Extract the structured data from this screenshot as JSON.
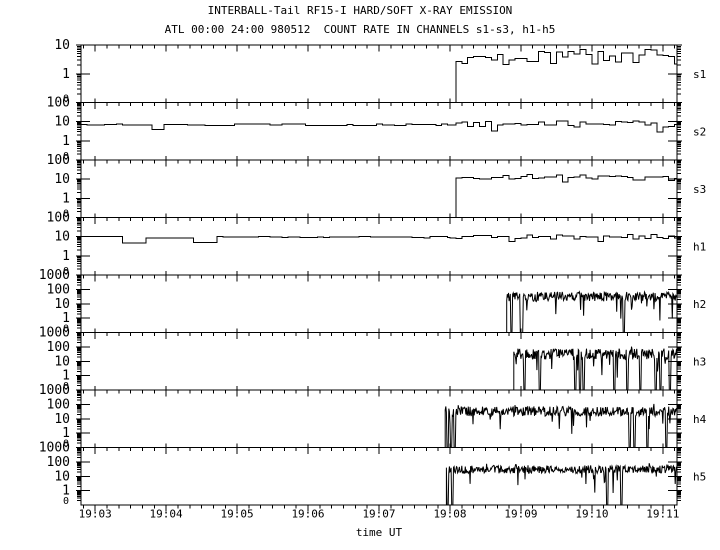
{
  "title": "INTERBALL-Tail RF15-I HARD/SOFT X-RAY EMISSION",
  "subtitle": "ATL 00:00 24:00 980512  COUNT RATE IN CHANNELS s1-s3, h1-h5",
  "colors": {
    "foreground": "#000000",
    "background": "#ffffff"
  },
  "chart_data": {
    "type": "line",
    "title": "INTERBALL-Tail RF15-I HARD/SOFT X-RAY EMISSION",
    "subtitle": "ATL 00:00 24:00 980512  COUNT RATE IN CHANNELS s1-s3, h1-h5",
    "grid": false,
    "x_axis": {
      "label": "time UT",
      "start_ut": "19:02:48",
      "end_ut": "19:11:12",
      "span_s": 504,
      "first_major_offset_s": 12,
      "major_tick_interval_s": 60,
      "minor_tick_interval_s": 10,
      "major_tick_labels": [
        "19:03",
        "19:04",
        "19:05",
        "19:06",
        "19:07",
        "19:08",
        "19:09",
        "19:10",
        "19:11"
      ]
    },
    "panels": [
      {
        "channel": "s1",
        "top_value": 10,
        "ylim": [
          0.1,
          10
        ],
        "y_tick_labels": [
          "10",
          "1",
          "0"
        ],
        "series": {
          "style": "step",
          "bin_seconds": 5,
          "onset_ut": "19:08:05",
          "segments": [
            {
              "t0": 317,
              "t1": 504,
              "log_center": 0.58,
              "log_spread": 0.27
            }
          ],
          "dropout_times_s": []
        }
      },
      {
        "channel": "s2",
        "top_value": 100,
        "ylim": [
          0.1,
          100
        ],
        "y_tick_labels": [
          "100",
          "10",
          "1",
          "0"
        ],
        "series": {
          "style": "step",
          "bin_seconds": 5,
          "onset_ut": "19:02:48",
          "segments": [
            {
              "t0": 0,
              "t1": 317,
              "log_center": 0.84,
              "log_spread": 0.05
            },
            {
              "t0": 317,
              "t1": 504,
              "log_center": 0.88,
              "log_spread": 0.16
            }
          ],
          "dropout_times_s": []
        }
      },
      {
        "channel": "s3",
        "top_value": 100,
        "ylim": [
          0.1,
          100
        ],
        "y_tick_labels": [
          "100",
          "10",
          "1",
          "0"
        ],
        "series": {
          "style": "step",
          "bin_seconds": 5,
          "onset_ut": "19:08:05",
          "segments": [
            {
              "t0": 317,
              "t1": 504,
              "log_center": 1.12,
              "log_spread": 0.13
            }
          ],
          "dropout_times_s": []
        }
      },
      {
        "channel": "h1",
        "top_value": 100,
        "ylim": [
          0.1,
          100
        ],
        "y_tick_labels": [
          "100",
          "10",
          "1",
          "0"
        ],
        "series": {
          "style": "step",
          "bin_seconds": 5,
          "onset_ut": "19:02:48",
          "segments": [
            {
              "t0": 0,
              "t1": 312,
              "log_center": 0.97,
              "log_spread": 0.04
            },
            {
              "t0": 312,
              "t1": 504,
              "log_center": 0.99,
              "log_spread": 0.13
            }
          ],
          "dropout_times_s": []
        }
      },
      {
        "channel": "h2",
        "top_value": 1000,
        "ylim": [
          0.1,
          1000
        ],
        "y_tick_labels": [
          "1000",
          "100",
          "10",
          "1",
          "0"
        ],
        "series": {
          "style": "dense",
          "sample_seconds": 0.5,
          "onset_ut": "19:08:48",
          "segments": [
            {
              "t0": 360,
              "t1": 504,
              "log_center": 1.5,
              "log_spread": 0.33
            }
          ],
          "dropout_times_s": [
            364,
            372,
            373,
            459
          ]
        }
      },
      {
        "channel": "h3",
        "top_value": 1000,
        "ylim": [
          0.1,
          1000
        ],
        "y_tick_labels": [
          "1000",
          "100",
          "10",
          "1",
          "0"
        ],
        "series": {
          "style": "dense",
          "sample_seconds": 0.5,
          "onset_ut": "19:08:54",
          "segments": [
            {
              "t0": 366,
              "t1": 504,
              "log_center": 1.5,
              "log_spread": 0.38
            }
          ],
          "dropout_times_s": [
            375,
            388,
            418,
            422,
            425,
            451,
            462,
            473,
            486,
            490,
            498
          ]
        }
      },
      {
        "channel": "h4",
        "top_value": 1000,
        "ylim": [
          0.1,
          1000
        ],
        "y_tick_labels": [
          "1000",
          "100",
          "10",
          "1",
          "0"
        ],
        "series": {
          "style": "dense",
          "sample_seconds": 0.5,
          "onset_ut": "19:07:56",
          "segments": [
            {
              "t0": 308,
              "t1": 504,
              "log_center": 1.52,
              "log_spread": 0.34
            }
          ],
          "dropout_times_s": [
            310,
            313,
            316,
            464,
            468,
            479,
            495
          ]
        }
      },
      {
        "channel": "h5",
        "top_value": 1000,
        "ylim": [
          0.1,
          1000
        ],
        "y_tick_labels": [
          "1000",
          "100",
          "10",
          "1",
          "0"
        ],
        "series": {
          "style": "dense",
          "sample_seconds": 0.5,
          "onset_ut": "19:07:57",
          "segments": [
            {
              "t0": 309,
              "t1": 504,
              "log_center": 1.48,
              "log_spread": 0.28
            }
          ],
          "dropout_times_s": [
            310,
            314,
            445,
            457
          ]
        }
      }
    ]
  }
}
